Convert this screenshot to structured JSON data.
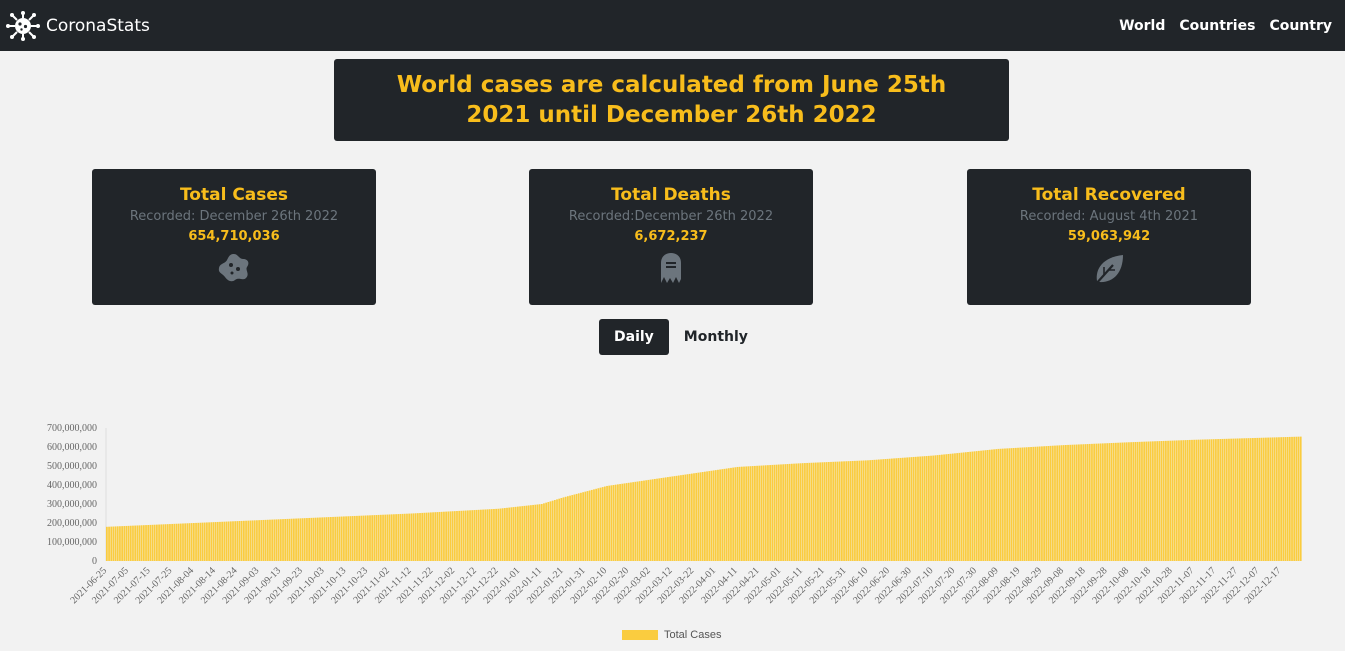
{
  "nav": {
    "brand": "CoronaStats",
    "links": [
      "World",
      "Countries",
      "Country"
    ]
  },
  "banner": {
    "text": "World cases are calculated from June 25th 2021 until December 26th 2022"
  },
  "cards": [
    {
      "title": "Total Cases",
      "recorded": "Recorded: December 26th 2022",
      "value": "654,710,036",
      "icon": "virus-icon"
    },
    {
      "title": "Total Deaths",
      "recorded": "Recorded:December 26th 2022",
      "value": "6,672,237",
      "icon": "tombstone-icon"
    },
    {
      "title": "Total Recovered",
      "recorded": "Recorded: August 4th 2021",
      "value": "59,063,942",
      "icon": "leaf-icon"
    }
  ],
  "toggle": {
    "daily": "Daily",
    "monthly": "Monthly",
    "active": "daily"
  },
  "colors": {
    "accent": "#f8bd1c",
    "dark": "#212529",
    "bar": "#facc3f"
  },
  "chart_data": {
    "type": "bar",
    "series": [
      {
        "name": "Total Cases"
      }
    ],
    "ylim": [
      0,
      700000000
    ],
    "yticks": [
      "700,000,000",
      "600,000,000",
      "500,000,000",
      "400,000,000",
      "300,000,000",
      "200,000,000",
      "100,000,000",
      "0"
    ],
    "xtick_labels": [
      "2021-06-25",
      "2021-07-05",
      "2021-07-15",
      "2021-07-25",
      "2021-08-04",
      "2021-08-14",
      "2021-08-24",
      "2021-09-03",
      "2021-09-13",
      "2021-09-23",
      "2021-10-03",
      "2021-10-13",
      "2021-10-23",
      "2021-11-02",
      "2021-11-12",
      "2021-11-22",
      "2021-12-02",
      "2021-12-12",
      "2021-12-22",
      "2022-01-01",
      "2022-01-11",
      "2022-01-21",
      "2022-01-31",
      "2022-02-10",
      "2022-02-20",
      "2022-03-02",
      "2022-03-12",
      "2022-03-22",
      "2022-04-01",
      "2022-04-11",
      "2022-04-21",
      "2022-05-01",
      "2022-05-11",
      "2022-05-21",
      "2022-05-31",
      "2022-06-10",
      "2022-06-20",
      "2022-06-30",
      "2022-07-10",
      "2022-07-20",
      "2022-07-30",
      "2022-08-09",
      "2022-08-19",
      "2022-08-29",
      "2022-09-08",
      "2022-09-18",
      "2022-09-28",
      "2022-10-08",
      "2022-10-18",
      "2022-10-28",
      "2022-11-07",
      "2022-11-17",
      "2022-11-27",
      "2022-12-07",
      "2022-12-17"
    ],
    "key_points": [
      {
        "date": "2021-06-25",
        "value": 180000000
      },
      {
        "date": "2021-08-04",
        "value": 200000000
      },
      {
        "date": "2021-09-23",
        "value": 225000000
      },
      {
        "date": "2021-11-12",
        "value": 250000000
      },
      {
        "date": "2021-12-22",
        "value": 275000000
      },
      {
        "date": "2022-01-11",
        "value": 300000000
      },
      {
        "date": "2022-01-21",
        "value": 335000000
      },
      {
        "date": "2022-02-10",
        "value": 395000000
      },
      {
        "date": "2022-03-12",
        "value": 445000000
      },
      {
        "date": "2022-04-11",
        "value": 495000000
      },
      {
        "date": "2022-05-11",
        "value": 515000000
      },
      {
        "date": "2022-06-10",
        "value": 530000000
      },
      {
        "date": "2022-07-10",
        "value": 555000000
      },
      {
        "date": "2022-08-09",
        "value": 590000000
      },
      {
        "date": "2022-09-08",
        "value": 610000000
      },
      {
        "date": "2022-10-08",
        "value": 625000000
      },
      {
        "date": "2022-11-07",
        "value": 638000000
      },
      {
        "date": "2022-12-26",
        "value": 654710036
      }
    ]
  }
}
